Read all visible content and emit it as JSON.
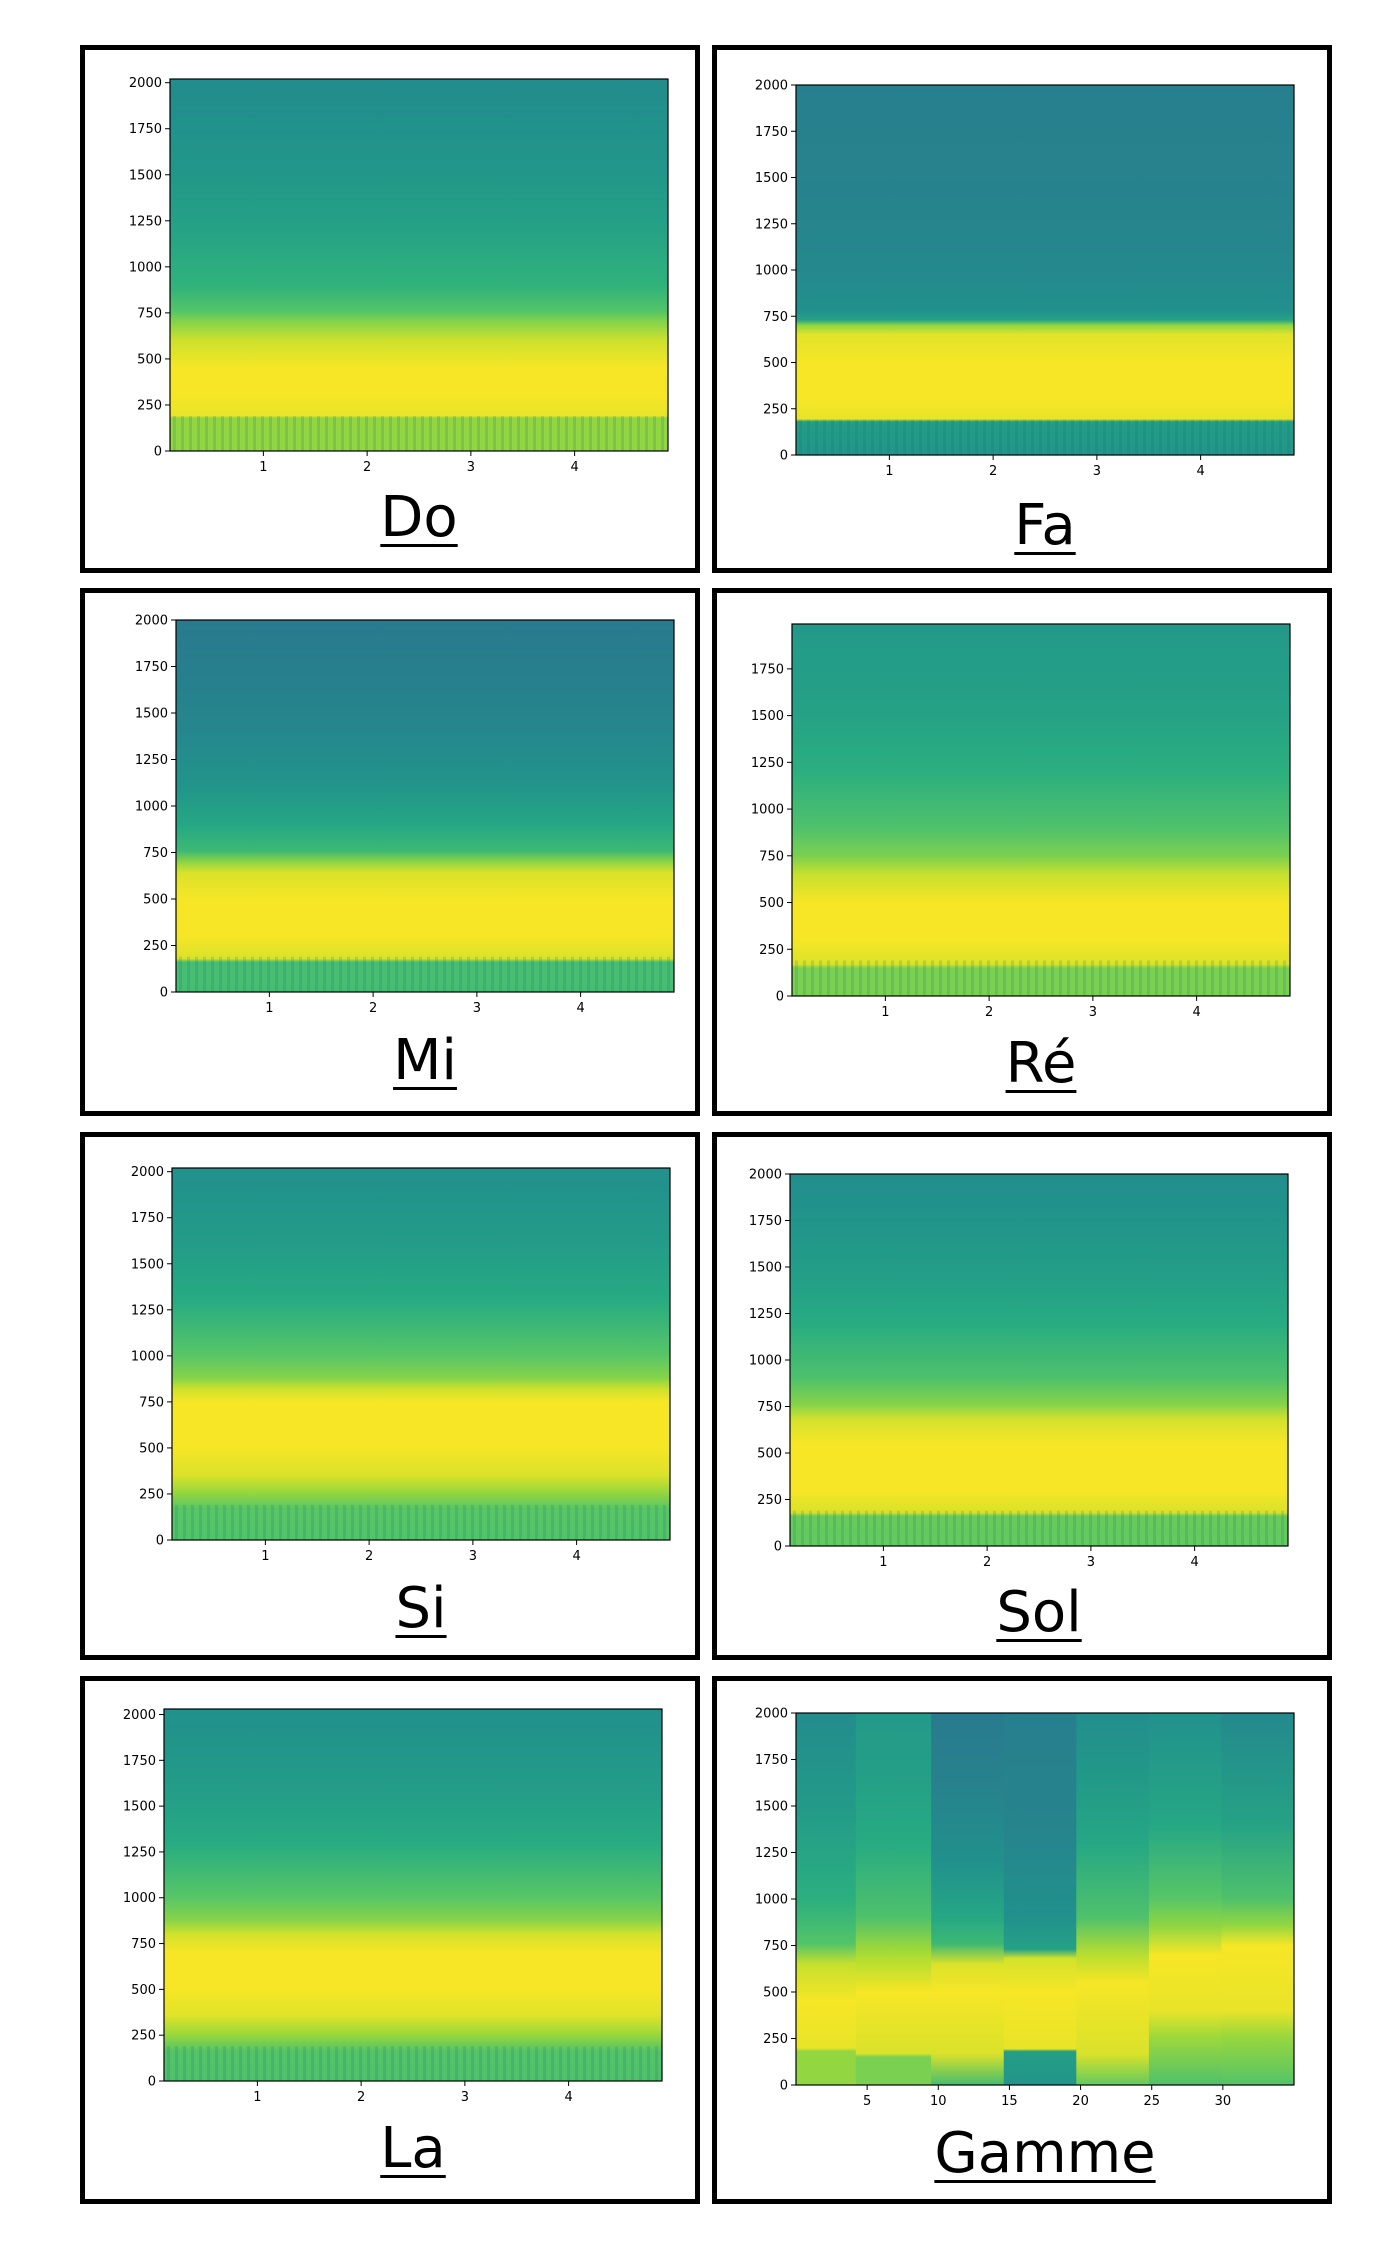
{
  "chart_data": [
    {
      "type": "heatmap",
      "title": "Do",
      "xticks": [
        1,
        2,
        3,
        4
      ],
      "yticks": [
        0,
        250,
        500,
        750,
        1000,
        1250,
        1500,
        1750,
        2000
      ],
      "xlim": [
        0.1,
        4.9
      ],
      "ylim": [
        0,
        2020
      ],
      "colormap": "viridis",
      "profile": [
        [
          0,
          0.84
        ],
        [
          180,
          0.84
        ],
        [
          190,
          0.97
        ],
        [
          300,
          0.99
        ],
        [
          450,
          0.99
        ],
        [
          600,
          0.93
        ],
        [
          700,
          0.82
        ],
        [
          760,
          0.73
        ],
        [
          900,
          0.65
        ],
        [
          1200,
          0.58
        ],
        [
          1500,
          0.53
        ],
        [
          1800,
          0.5
        ],
        [
          2020,
          0.48
        ]
      ],
      "stripes": true
    },
    {
      "type": "heatmap",
      "title": "Fa",
      "xticks": [
        1,
        2,
        3,
        4
      ],
      "yticks": [
        0,
        250,
        500,
        750,
        1000,
        1250,
        1500,
        1750,
        2000
      ],
      "xlim": [
        0.1,
        4.9
      ],
      "ylim": [
        0,
        2000
      ],
      "colormap": "viridis",
      "profile": [
        [
          0,
          0.52
        ],
        [
          180,
          0.56
        ],
        [
          195,
          0.97
        ],
        [
          300,
          0.99
        ],
        [
          500,
          0.99
        ],
        [
          650,
          0.96
        ],
        [
          700,
          0.84
        ],
        [
          730,
          0.58
        ],
        [
          780,
          0.5
        ],
        [
          1000,
          0.47
        ],
        [
          1300,
          0.45
        ],
        [
          1600,
          0.44
        ],
        [
          2000,
          0.43
        ]
      ],
      "stripes": true
    },
    {
      "type": "heatmap",
      "title": "Mi",
      "xticks": [
        1,
        2,
        3,
        4
      ],
      "yticks": [
        0,
        250,
        500,
        750,
        1000,
        1250,
        1500,
        1750,
        2000
      ],
      "xlim": [
        0.1,
        4.9
      ],
      "ylim": [
        0,
        2000
      ],
      "colormap": "viridis",
      "profile": [
        [
          0,
          0.7
        ],
        [
          160,
          0.7
        ],
        [
          180,
          0.95
        ],
        [
          300,
          0.99
        ],
        [
          500,
          0.99
        ],
        [
          640,
          0.95
        ],
        [
          700,
          0.83
        ],
        [
          760,
          0.68
        ],
        [
          900,
          0.6
        ],
        [
          1100,
          0.52
        ],
        [
          1400,
          0.46
        ],
        [
          1700,
          0.43
        ],
        [
          2000,
          0.41
        ]
      ],
      "stripes": true
    },
    {
      "type": "heatmap",
      "title": "Ré",
      "xticks": [
        1,
        2,
        3,
        4
      ],
      "yticks": [
        0,
        250,
        500,
        750,
        1000,
        1250,
        1500,
        1750
      ],
      "xlim": [
        0.1,
        4.9
      ],
      "ylim": [
        0,
        1990
      ],
      "colormap": "viridis",
      "profile": [
        [
          0,
          0.8
        ],
        [
          150,
          0.8
        ],
        [
          170,
          0.95
        ],
        [
          300,
          0.99
        ],
        [
          500,
          0.99
        ],
        [
          650,
          0.92
        ],
        [
          750,
          0.8
        ],
        [
          900,
          0.72
        ],
        [
          1200,
          0.64
        ],
        [
          1500,
          0.58
        ],
        [
          1800,
          0.55
        ],
        [
          1990,
          0.54
        ]
      ],
      "stripes": true
    },
    {
      "type": "heatmap",
      "title": "Si",
      "xticks": [
        1,
        2,
        3,
        4
      ],
      "yticks": [
        0,
        250,
        500,
        750,
        1000,
        1250,
        1500,
        1750,
        2000
      ],
      "xlim": [
        0.1,
        4.9
      ],
      "ylim": [
        0,
        2020
      ],
      "colormap": "viridis",
      "profile": [
        [
          0,
          0.73
        ],
        [
          170,
          0.74
        ],
        [
          260,
          0.85
        ],
        [
          350,
          0.95
        ],
        [
          500,
          0.99
        ],
        [
          750,
          0.99
        ],
        [
          820,
          0.93
        ],
        [
          880,
          0.82
        ],
        [
          1000,
          0.74
        ],
        [
          1300,
          0.62
        ],
        [
          1600,
          0.55
        ],
        [
          1900,
          0.51
        ],
        [
          2020,
          0.5
        ]
      ],
      "stripes": true
    },
    {
      "type": "heatmap",
      "title": "Sol",
      "xticks": [
        1,
        2,
        3,
        4
      ],
      "yticks": [
        0,
        250,
        500,
        750,
        1000,
        1250,
        1500,
        1750,
        2000
      ],
      "xlim": [
        0.1,
        4.9
      ],
      "ylim": [
        0,
        2000
      ],
      "colormap": "viridis",
      "profile": [
        [
          0,
          0.76
        ],
        [
          160,
          0.77
        ],
        [
          180,
          0.95
        ],
        [
          300,
          0.99
        ],
        [
          550,
          0.99
        ],
        [
          680,
          0.94
        ],
        [
          760,
          0.82
        ],
        [
          900,
          0.72
        ],
        [
          1200,
          0.62
        ],
        [
          1500,
          0.55
        ],
        [
          1800,
          0.51
        ],
        [
          2000,
          0.49
        ]
      ],
      "stripes": true
    },
    {
      "type": "heatmap",
      "title": "La",
      "xticks": [
        1,
        2,
        3,
        4
      ],
      "yticks": [
        0,
        250,
        500,
        750,
        1000,
        1250,
        1500,
        1750,
        2000
      ],
      "xlim": [
        0.1,
        4.9
      ],
      "ylim": [
        0,
        2030
      ],
      "colormap": "viridis",
      "profile": [
        [
          0,
          0.72
        ],
        [
          160,
          0.73
        ],
        [
          260,
          0.86
        ],
        [
          360,
          0.96
        ],
        [
          500,
          0.99
        ],
        [
          700,
          0.99
        ],
        [
          800,
          0.94
        ],
        [
          880,
          0.82
        ],
        [
          1000,
          0.74
        ],
        [
          1300,
          0.62
        ],
        [
          1600,
          0.55
        ],
        [
          1900,
          0.51
        ],
        [
          2030,
          0.5
        ]
      ],
      "stripes": true
    },
    {
      "type": "heatmap",
      "title": "Gamme",
      "xticks": [
        5,
        10,
        15,
        20,
        25,
        30
      ],
      "yticks": [
        0,
        250,
        500,
        750,
        1000,
        1250,
        1500,
        1750,
        2000
      ],
      "xlim": [
        0,
        35
      ],
      "ylim": [
        0,
        2000
      ],
      "colormap": "viridis",
      "segments": [
        {
          "x0": 0,
          "x1": 4.2,
          "profile": [
            [
              0,
              0.84
            ],
            [
              180,
              0.84
            ],
            [
              200,
              0.97
            ],
            [
              450,
              0.99
            ],
            [
              650,
              0.92
            ],
            [
              760,
              0.73
            ],
            [
              1000,
              0.64
            ],
            [
              1500,
              0.54
            ],
            [
              2000,
              0.48
            ]
          ]
        },
        {
          "x0": 4.2,
          "x1": 9.5,
          "profile": [
            [
              0,
              0.8
            ],
            [
              150,
              0.8
            ],
            [
              170,
              0.95
            ],
            [
              500,
              0.99
            ],
            [
              700,
              0.88
            ],
            [
              900,
              0.72
            ],
            [
              1300,
              0.62
            ],
            [
              1700,
              0.56
            ],
            [
              2000,
              0.54
            ]
          ]
        },
        {
          "x0": 9.5,
          "x1": 14.6,
          "profile": [
            [
              0,
              0.7
            ],
            [
              170,
              0.95
            ],
            [
              500,
              0.99
            ],
            [
              650,
              0.95
            ],
            [
              760,
              0.68
            ],
            [
              900,
              0.6
            ],
            [
              1200,
              0.5
            ],
            [
              1600,
              0.44
            ],
            [
              2000,
              0.41
            ]
          ]
        },
        {
          "x0": 14.6,
          "x1": 19.7,
          "profile": [
            [
              0,
              0.52
            ],
            [
              180,
              0.56
            ],
            [
              195,
              0.97
            ],
            [
              500,
              0.99
            ],
            [
              680,
              0.94
            ],
            [
              730,
              0.58
            ],
            [
              900,
              0.5
            ],
            [
              1400,
              0.45
            ],
            [
              2000,
              0.43
            ]
          ]
        },
        {
          "x0": 19.7,
          "x1": 24.8,
          "profile": [
            [
              0,
              0.76
            ],
            [
              170,
              0.95
            ],
            [
              550,
              0.99
            ],
            [
              700,
              0.9
            ],
            [
              900,
              0.72
            ],
            [
              1300,
              0.6
            ],
            [
              1700,
              0.53
            ],
            [
              2000,
              0.49
            ]
          ]
        },
        {
          "x0": 24.8,
          "x1": 29.9,
          "profile": [
            [
              0,
              0.72
            ],
            [
              260,
              0.86
            ],
            [
              400,
              0.97
            ],
            [
              700,
              0.99
            ],
            [
              850,
              0.84
            ],
            [
              1000,
              0.74
            ],
            [
              1400,
              0.6
            ],
            [
              2000,
              0.5
            ]
          ]
        },
        {
          "x0": 29.9,
          "x1": 35,
          "profile": [
            [
              0,
              0.73
            ],
            [
              260,
              0.85
            ],
            [
              400,
              0.97
            ],
            [
              750,
              0.99
            ],
            [
              860,
              0.84
            ],
            [
              1000,
              0.72
            ],
            [
              1400,
              0.58
            ],
            [
              2000,
              0.47
            ]
          ]
        }
      ],
      "stripes": false
    }
  ]
}
